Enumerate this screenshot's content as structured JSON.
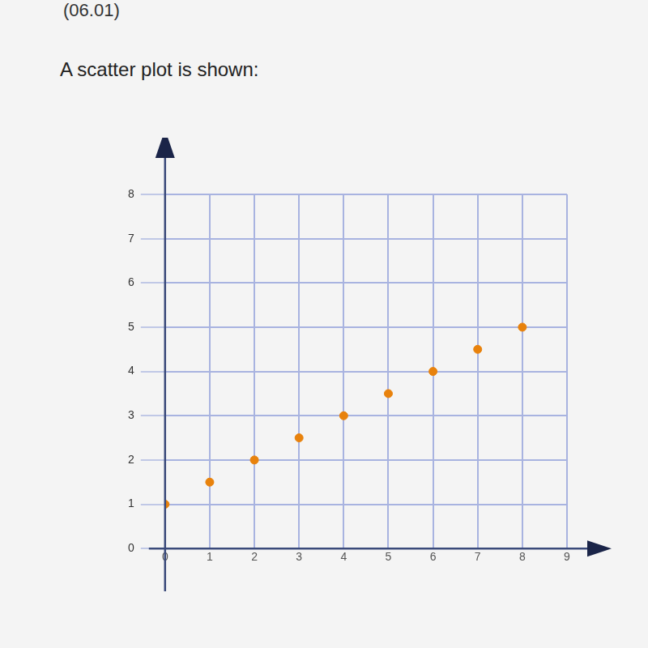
{
  "page": {
    "code": "(06.01)",
    "text": "A scatter plot is shown:"
  },
  "chart_data": {
    "type": "scatter",
    "x": [
      0,
      1,
      2,
      3,
      4,
      5,
      6,
      7,
      8
    ],
    "values": [
      1,
      1.5,
      2,
      2.5,
      3,
      3.5,
      4,
      4.5,
      5
    ],
    "color": "#e8820c",
    "marker": "circle",
    "xlim": [
      0,
      9
    ],
    "ylim": [
      0,
      8
    ],
    "xticks": [
      0,
      1,
      2,
      3,
      4,
      5,
      6,
      7,
      8,
      9
    ],
    "yticks": [
      0,
      1,
      2,
      3,
      4,
      5,
      6,
      7,
      8
    ],
    "grid": true
  }
}
